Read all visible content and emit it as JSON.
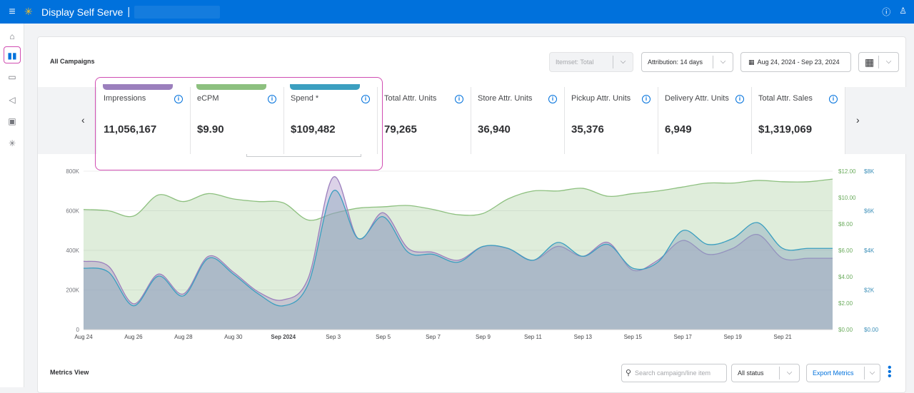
{
  "app": {
    "title": "Display Self Serve",
    "separator": "|"
  },
  "topbar": {
    "help_icon": "help-icon",
    "user_icon": "user-icon"
  },
  "sidenav": [
    "home-icon",
    "reports-icon",
    "briefcase-icon",
    "megaphone-icon",
    "image-icon",
    "spark-icon"
  ],
  "page": {
    "title": "All Campaigns"
  },
  "controls": {
    "itemset": "Itemset: Total",
    "attribution": "Attribution: 14 days",
    "date_range": "Aug 24, 2024 - Sep 23, 2024"
  },
  "metrics": [
    {
      "label": "Impressions",
      "value": "11,056,167",
      "color": "#9b7fbd"
    },
    {
      "label": "eCPM",
      "value": "$9.90",
      "color": "#8dc07f"
    },
    {
      "label": "Spend *",
      "value": "$109,482",
      "color": "#3b9fc0"
    },
    {
      "label": "Total Attr. Units",
      "value": "79,265"
    },
    {
      "label": "Store Attr. Units",
      "value": "36,940"
    },
    {
      "label": "Pickup Attr. Units",
      "value": "35,376"
    },
    {
      "label": "Delivery Attr. Units",
      "value": "6,949"
    },
    {
      "label": "Total Attr. Sales",
      "value": "$1,319,069"
    }
  ],
  "chart_data": {
    "type": "area",
    "x": [
      "Aug 24",
      "Aug 25",
      "Aug 26",
      "Aug 27",
      "Aug 28",
      "Aug 29",
      "Aug 30",
      "Aug 31",
      "Sep 1",
      "Sep 2",
      "Sep 3",
      "Sep 4",
      "Sep 5",
      "Sep 6",
      "Sep 7",
      "Sep 8",
      "Sep 9",
      "Sep 10",
      "Sep 11",
      "Sep 12",
      "Sep 13",
      "Sep 14",
      "Sep 15",
      "Sep 16",
      "Sep 17",
      "Sep 18",
      "Sep 19",
      "Sep 20",
      "Sep 21",
      "Sep 22",
      "Sep 23"
    ],
    "x_tick_labels": [
      "Aug 24",
      "Aug 26",
      "Aug 28",
      "Aug 30",
      "Sep 2024",
      "Sep 3",
      "Sep 5",
      "Sep 7",
      "Sep 9",
      "Sep 11",
      "Sep 13",
      "Sep 15",
      "Sep 17",
      "Sep 19",
      "Sep 21"
    ],
    "y_left": {
      "ticks": [
        "0",
        "200K",
        "400K",
        "600K",
        "800K"
      ],
      "range": [
        0,
        800000
      ]
    },
    "y_right_ecpm": {
      "ticks": [
        "$0.00",
        "$2.00",
        "$4.00",
        "$6.00",
        "$8.00",
        "$10.00",
        "$12.00"
      ],
      "range": [
        0,
        12
      ]
    },
    "y_right_spend": {
      "ticks": [
        "$0.00",
        "$2K",
        "$4K",
        "$6K",
        "$8K"
      ],
      "range": [
        0,
        8000
      ]
    },
    "series": [
      {
        "name": "eCPM",
        "color": "#8dc07f",
        "axis": "ecpm",
        "values": [
          9.1,
          9.0,
          8.6,
          10.2,
          9.7,
          10.3,
          9.9,
          9.7,
          9.6,
          8.3,
          8.8,
          9.2,
          9.3,
          9.4,
          9.1,
          8.7,
          8.8,
          9.9,
          10.5,
          10.5,
          10.7,
          10.1,
          10.3,
          10.5,
          10.8,
          11.1,
          11.1,
          11.3,
          11.2,
          11.2,
          11.4
        ]
      },
      {
        "name": "Impressions",
        "color": "#9b7fbd",
        "axis": "left",
        "values": [
          345000,
          320000,
          130000,
          280000,
          180000,
          370000,
          290000,
          190000,
          150000,
          260000,
          770000,
          460000,
          590000,
          410000,
          390000,
          350000,
          420000,
          410000,
          350000,
          420000,
          370000,
          440000,
          300000,
          350000,
          450000,
          380000,
          410000,
          480000,
          360000,
          360000,
          360000
        ]
      },
      {
        "name": "Spend *",
        "color": "#3b9fc0",
        "axis": "spend",
        "values": [
          3100,
          2900,
          1200,
          2700,
          1700,
          3600,
          2800,
          1800,
          1200,
          2300,
          7000,
          4600,
          5700,
          3900,
          3800,
          3400,
          4200,
          4100,
          3500,
          4400,
          3700,
          4300,
          3100,
          3400,
          5000,
          4300,
          4600,
          5400,
          4100,
          4100,
          4100
        ]
      }
    ]
  },
  "bottom": {
    "title": "Metrics View",
    "search_placeholder": "Search campaign/line item",
    "status": "All status",
    "export": "Export Metrics"
  }
}
